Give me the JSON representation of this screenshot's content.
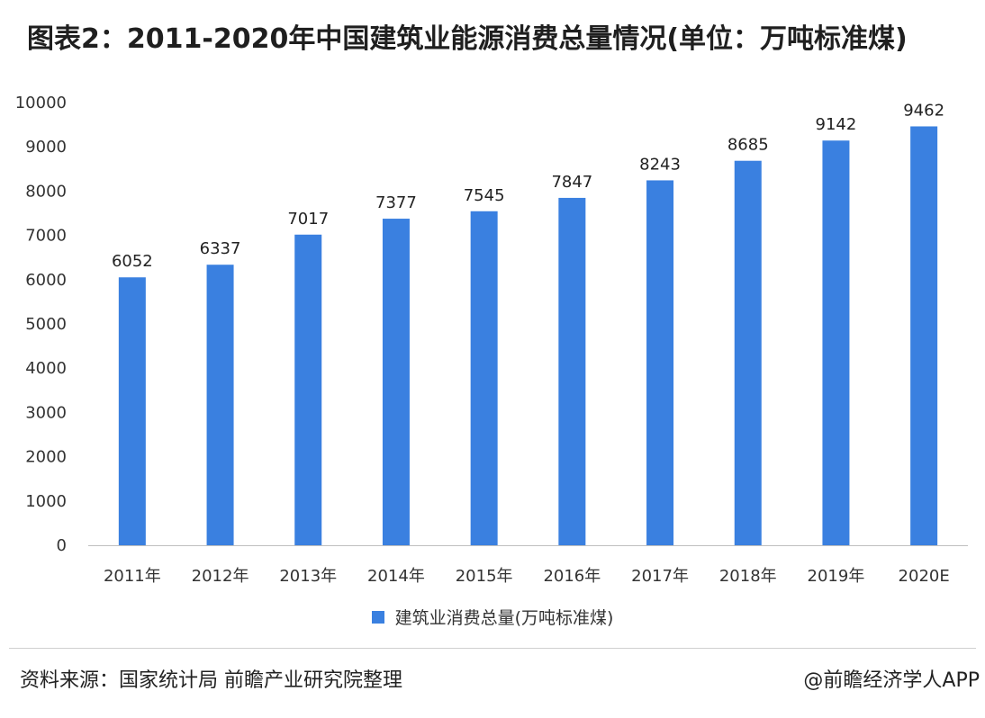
{
  "title": "图表2：2011-2020年中国建筑业能源消费总量情况(单位：万吨标准煤)",
  "chart_data": {
    "type": "bar",
    "categories": [
      "2011年",
      "2012年",
      "2013年",
      "2014年",
      "2015年",
      "2016年",
      "2017年",
      "2018年",
      "2019年",
      "2020E"
    ],
    "series": [
      {
        "name": "建筑业消费总量(万吨标准煤)",
        "values": [
          6052,
          6337,
          7017,
          7377,
          7545,
          7847,
          8243,
          8685,
          9142,
          9462
        ]
      }
    ],
    "ylim": [
      0,
      10000
    ],
    "yticks": [
      0,
      1000,
      2000,
      3000,
      4000,
      5000,
      6000,
      7000,
      8000,
      9000,
      10000
    ],
    "grid": false,
    "legend_position": "bottom-center",
    "bar_color": "#3a80e0"
  },
  "footer": {
    "source": "资料来源：国家统计局 前瞻产业研究院整理",
    "brand": "@前瞻经济学人APP"
  }
}
